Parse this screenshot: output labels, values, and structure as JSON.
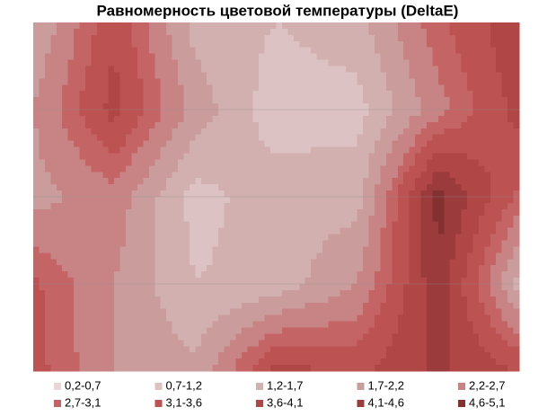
{
  "chart_data": {
    "type": "contour",
    "title": "Равномерность цветовой температуры (DeltaE)",
    "z": [
      [
        1.7,
        3.5,
        1.5,
        1.2,
        1.5,
        3.0,
        4.0
      ],
      [
        2.2,
        3.8,
        2.0,
        0.9,
        1.0,
        2.5,
        3.8
      ],
      [
        2.0,
        2.5,
        1.0,
        1.5,
        1.5,
        4.8,
        3.0
      ],
      [
        3.2,
        2.2,
        1.2,
        1.4,
        2.2,
        4.5,
        1.5
      ],
      [
        3.3,
        2.2,
        1.8,
        3.8,
        3.5,
        4.2,
        3.6
      ]
    ],
    "bands": [
      {
        "label": "0,2-0,7",
        "from": 0.2,
        "to": 0.7,
        "color": "#e9d6d6"
      },
      {
        "label": "0,7-1,2",
        "from": 0.7,
        "to": 1.2,
        "color": "#dcc2c2"
      },
      {
        "label": "1,2-1,7",
        "from": 1.2,
        "to": 1.7,
        "color": "#d3b0b0"
      },
      {
        "label": "1,7-2,2",
        "from": 1.7,
        "to": 2.2,
        "color": "#cb9c9c"
      },
      {
        "label": "2,2-2,7",
        "from": 2.2,
        "to": 2.7,
        "color": "#c88484"
      },
      {
        "label": "2,7-3,1",
        "from": 2.7,
        "to": 3.1,
        "color": "#c46464"
      },
      {
        "label": "3,1-3,6",
        "from": 3.1,
        "to": 3.6,
        "color": "#bd5252"
      },
      {
        "label": "3,6-4,1",
        "from": 3.6,
        "to": 4.1,
        "color": "#b04646"
      },
      {
        "label": "4,1-4,6",
        "from": 4.1,
        "to": 4.6,
        "color": "#9c3b3b"
      },
      {
        "label": "4,6-5,1",
        "from": 4.6,
        "to": 5.1,
        "color": "#823030"
      }
    ]
  }
}
